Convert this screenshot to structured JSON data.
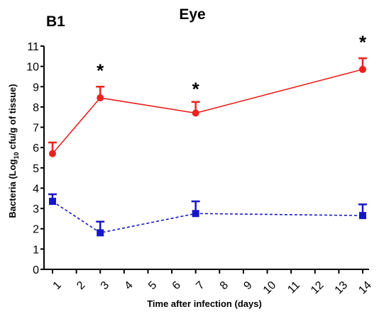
{
  "panel_label": "B1",
  "chart_data": {
    "type": "line",
    "title": "Eye",
    "xlabel": "Time after infection (days)",
    "ylabel": {
      "before_sub": "Bacteria (Log",
      "sub": "10",
      "after_sub": " cfu/g of tissue)"
    },
    "xlim": [
      1,
      14
    ],
    "ylim": [
      0,
      11
    ],
    "xticks": [
      1,
      2,
      3,
      4,
      5,
      6,
      7,
      8,
      9,
      10,
      11,
      12,
      13,
      14
    ],
    "yticks": [
      0,
      1,
      2,
      3,
      4,
      5,
      6,
      7,
      8,
      9,
      10,
      11
    ],
    "grid": false,
    "series": [
      {
        "color": "#e8231f",
        "line_style": "solid",
        "marker": "circle",
        "x": [
          1,
          3,
          7,
          14
        ],
        "y": [
          5.7,
          8.45,
          7.7,
          9.85
        ],
        "error_upper": [
          6.25,
          9.0,
          8.25,
          10.4
        ]
      },
      {
        "color": "#1616c8",
        "line_style": "dashed",
        "marker": "square",
        "x": [
          1,
          3,
          7,
          14
        ],
        "y": [
          3.35,
          1.8,
          2.75,
          2.65
        ],
        "error_upper": [
          3.7,
          2.35,
          3.35,
          3.2
        ]
      }
    ],
    "annotations": [
      {
        "text": "*",
        "x": 3,
        "y": 9.9
      },
      {
        "text": "*",
        "x": 7,
        "y": 9.0
      },
      {
        "text": "*",
        "x": 14,
        "y": 11.3
      }
    ]
  }
}
